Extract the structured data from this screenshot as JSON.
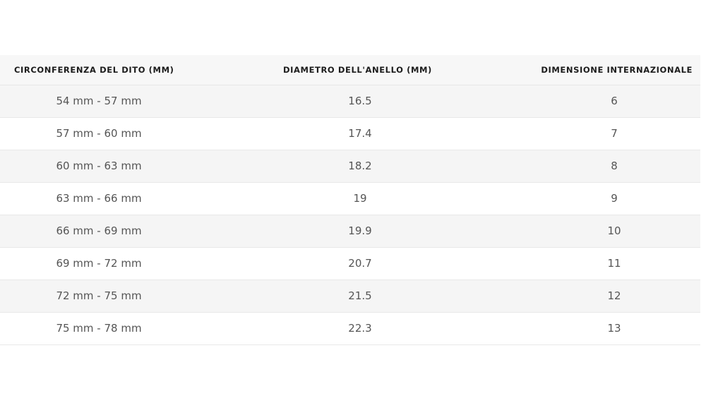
{
  "table": {
    "headers": [
      "CIRCONFERENZA DEL DITO (MM)",
      "DIAMETRO DELL'ANELLO (MM)",
      "DIMENSIONE INTERNAZIONALE"
    ],
    "rows": [
      [
        "54 mm - 57 mm",
        "16.5",
        "6"
      ],
      [
        "57 mm - 60 mm",
        "17.4",
        "7"
      ],
      [
        "60 mm - 63 mm",
        "18.2",
        "8"
      ],
      [
        "63 mm - 66 mm",
        "19",
        "9"
      ],
      [
        "66 mm - 69 mm",
        "19.9",
        "10"
      ],
      [
        "69 mm - 72 mm",
        "20.7",
        "11"
      ],
      [
        "72 mm - 75 mm",
        "21.5",
        "12"
      ],
      [
        "75 mm - 78 mm",
        "22.3",
        "13"
      ]
    ]
  }
}
